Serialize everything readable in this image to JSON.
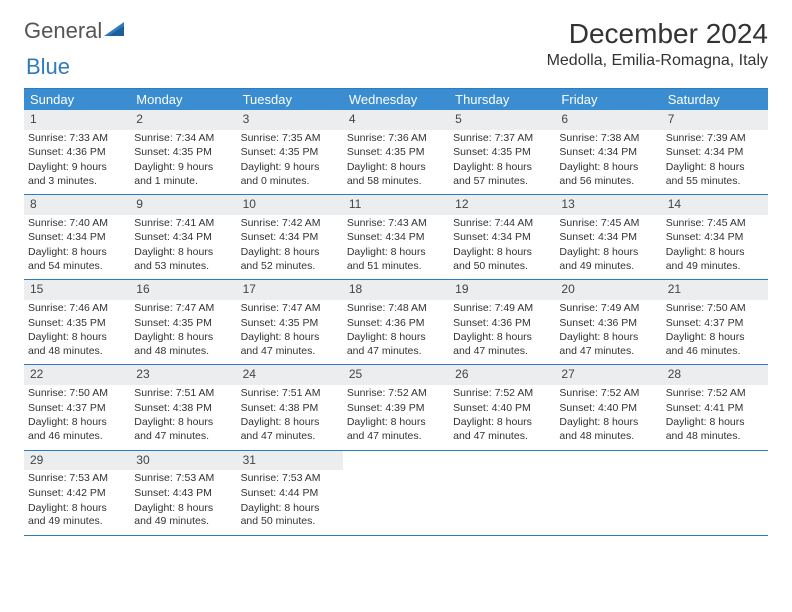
{
  "logo": {
    "text1": "General",
    "text2": "Blue"
  },
  "title": "December 2024",
  "location": "Medolla, Emilia-Romagna, Italy",
  "weekdays": [
    "Sunday",
    "Monday",
    "Tuesday",
    "Wednesday",
    "Thursday",
    "Friday",
    "Saturday"
  ],
  "colors": {
    "header_bg": "#3a8dd0",
    "rule": "#2f7bbf",
    "daynum_bg": "#ebedef",
    "text": "#333333"
  },
  "days": [
    {
      "n": "1",
      "sr": "7:33 AM",
      "ss": "4:36 PM",
      "dl": "9 hours and 3 minutes."
    },
    {
      "n": "2",
      "sr": "7:34 AM",
      "ss": "4:35 PM",
      "dl": "9 hours and 1 minute."
    },
    {
      "n": "3",
      "sr": "7:35 AM",
      "ss": "4:35 PM",
      "dl": "9 hours and 0 minutes."
    },
    {
      "n": "4",
      "sr": "7:36 AM",
      "ss": "4:35 PM",
      "dl": "8 hours and 58 minutes."
    },
    {
      "n": "5",
      "sr": "7:37 AM",
      "ss": "4:35 PM",
      "dl": "8 hours and 57 minutes."
    },
    {
      "n": "6",
      "sr": "7:38 AM",
      "ss": "4:34 PM",
      "dl": "8 hours and 56 minutes."
    },
    {
      "n": "7",
      "sr": "7:39 AM",
      "ss": "4:34 PM",
      "dl": "8 hours and 55 minutes."
    },
    {
      "n": "8",
      "sr": "7:40 AM",
      "ss": "4:34 PM",
      "dl": "8 hours and 54 minutes."
    },
    {
      "n": "9",
      "sr": "7:41 AM",
      "ss": "4:34 PM",
      "dl": "8 hours and 53 minutes."
    },
    {
      "n": "10",
      "sr": "7:42 AM",
      "ss": "4:34 PM",
      "dl": "8 hours and 52 minutes."
    },
    {
      "n": "11",
      "sr": "7:43 AM",
      "ss": "4:34 PM",
      "dl": "8 hours and 51 minutes."
    },
    {
      "n": "12",
      "sr": "7:44 AM",
      "ss": "4:34 PM",
      "dl": "8 hours and 50 minutes."
    },
    {
      "n": "13",
      "sr": "7:45 AM",
      "ss": "4:34 PM",
      "dl": "8 hours and 49 minutes."
    },
    {
      "n": "14",
      "sr": "7:45 AM",
      "ss": "4:34 PM",
      "dl": "8 hours and 49 minutes."
    },
    {
      "n": "15",
      "sr": "7:46 AM",
      "ss": "4:35 PM",
      "dl": "8 hours and 48 minutes."
    },
    {
      "n": "16",
      "sr": "7:47 AM",
      "ss": "4:35 PM",
      "dl": "8 hours and 48 minutes."
    },
    {
      "n": "17",
      "sr": "7:47 AM",
      "ss": "4:35 PM",
      "dl": "8 hours and 47 minutes."
    },
    {
      "n": "18",
      "sr": "7:48 AM",
      "ss": "4:36 PM",
      "dl": "8 hours and 47 minutes."
    },
    {
      "n": "19",
      "sr": "7:49 AM",
      "ss": "4:36 PM",
      "dl": "8 hours and 47 minutes."
    },
    {
      "n": "20",
      "sr": "7:49 AM",
      "ss": "4:36 PM",
      "dl": "8 hours and 47 minutes."
    },
    {
      "n": "21",
      "sr": "7:50 AM",
      "ss": "4:37 PM",
      "dl": "8 hours and 46 minutes."
    },
    {
      "n": "22",
      "sr": "7:50 AM",
      "ss": "4:37 PM",
      "dl": "8 hours and 46 minutes."
    },
    {
      "n": "23",
      "sr": "7:51 AM",
      "ss": "4:38 PM",
      "dl": "8 hours and 47 minutes."
    },
    {
      "n": "24",
      "sr": "7:51 AM",
      "ss": "4:38 PM",
      "dl": "8 hours and 47 minutes."
    },
    {
      "n": "25",
      "sr": "7:52 AM",
      "ss": "4:39 PM",
      "dl": "8 hours and 47 minutes."
    },
    {
      "n": "26",
      "sr": "7:52 AM",
      "ss": "4:40 PM",
      "dl": "8 hours and 47 minutes."
    },
    {
      "n": "27",
      "sr": "7:52 AM",
      "ss": "4:40 PM",
      "dl": "8 hours and 48 minutes."
    },
    {
      "n": "28",
      "sr": "7:52 AM",
      "ss": "4:41 PM",
      "dl": "8 hours and 48 minutes."
    },
    {
      "n": "29",
      "sr": "7:53 AM",
      "ss": "4:42 PM",
      "dl": "8 hours and 49 minutes."
    },
    {
      "n": "30",
      "sr": "7:53 AM",
      "ss": "4:43 PM",
      "dl": "8 hours and 49 minutes."
    },
    {
      "n": "31",
      "sr": "7:53 AM",
      "ss": "4:44 PM",
      "dl": "8 hours and 50 minutes."
    }
  ],
  "labels": {
    "sunrise": "Sunrise:",
    "sunset": "Sunset:",
    "daylight": "Daylight:"
  }
}
